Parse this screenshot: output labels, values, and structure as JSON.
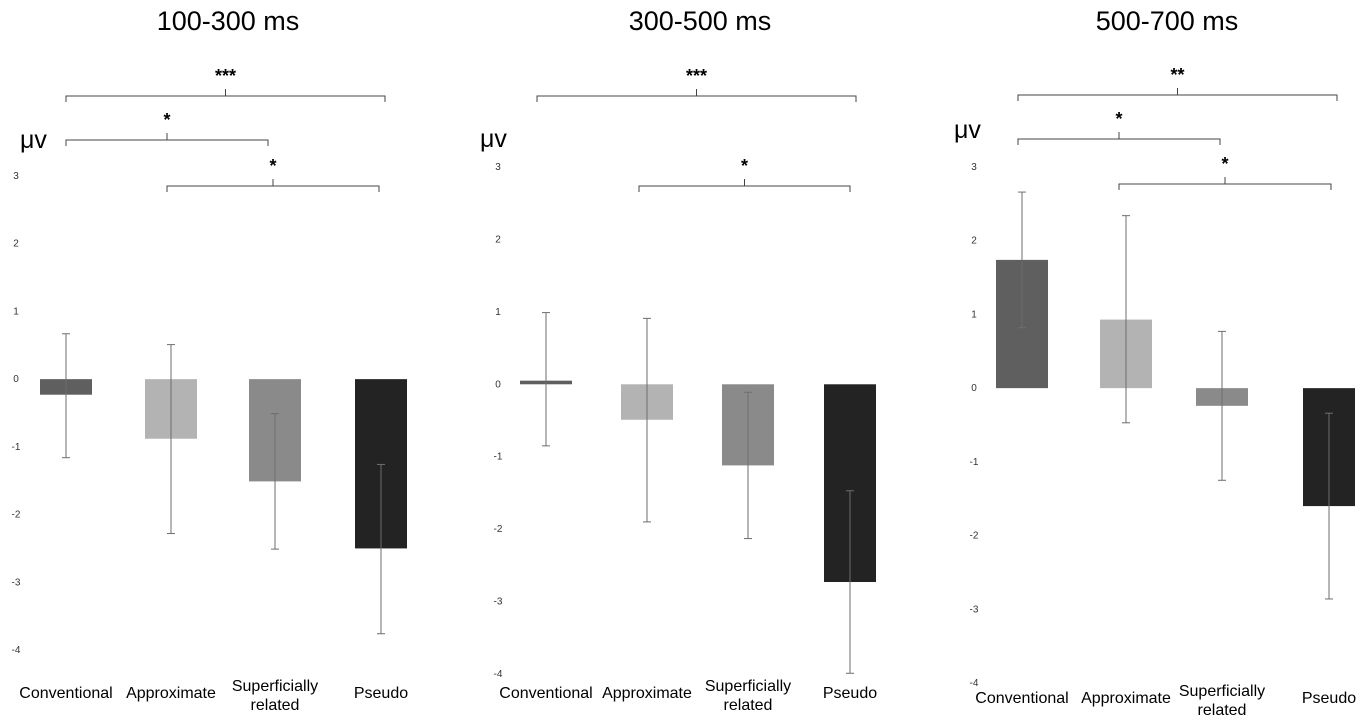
{
  "chart_data": [
    {
      "type": "bar",
      "title": "100-300 ms",
      "ylabel": "μv",
      "ylim": [
        -4,
        3
      ],
      "yticks": [
        3,
        2,
        1,
        0,
        -1,
        -2,
        -3,
        -4
      ],
      "categories": [
        "Conventional",
        "Approximate",
        "Superficially related",
        "Pseudo"
      ],
      "category_label_lines": [
        [
          "Conventional"
        ],
        [
          "Approximate"
        ],
        [
          "Superficially",
          "related"
        ],
        [
          "Pseudo"
        ]
      ],
      "values": [
        -0.23,
        -0.88,
        -1.51,
        -2.5
      ],
      "error_bars": [
        [
          -1.16,
          0.67
        ],
        [
          -2.28,
          0.51
        ],
        [
          -2.51,
          -0.51
        ],
        [
          -3.76,
          -1.26
        ]
      ],
      "colors": [
        "#5f5f5f",
        "#b3b3b3",
        "#8a8a8a",
        "#232323"
      ],
      "significance": [
        {
          "from": 0,
          "to": 3,
          "label": "***"
        },
        {
          "from": 0,
          "to": 2,
          "label": "*"
        },
        {
          "from": 1,
          "to": 3,
          "label": "*"
        }
      ]
    },
    {
      "type": "bar",
      "title": "300-500 ms",
      "ylabel": "μv",
      "ylim": [
        -4,
        3
      ],
      "yticks": [
        3,
        2,
        1,
        0,
        -1,
        -2,
        -3,
        -4
      ],
      "categories": [
        "Conventional",
        "Approximate",
        "Superficially related",
        "Pseudo"
      ],
      "category_label_lines": [
        [
          "Conventional"
        ],
        [
          "Approximate"
        ],
        [
          "Superficially",
          "related"
        ],
        [
          "Pseudo"
        ]
      ],
      "values": [
        0.05,
        -0.49,
        -1.12,
        -2.73
      ],
      "error_bars": [
        [
          -0.85,
          0.99
        ],
        [
          -1.9,
          0.91
        ],
        [
          -2.13,
          -0.11
        ],
        [
          -3.99,
          -1.47
        ]
      ],
      "colors": [
        "#5f5f5f",
        "#b3b3b3",
        "#8a8a8a",
        "#232323"
      ],
      "significance": [
        {
          "from": 0,
          "to": 3,
          "label": "***"
        },
        {
          "from": 1,
          "to": 3,
          "label": "*"
        }
      ]
    },
    {
      "type": "bar",
      "title": "500-700 ms",
      "ylabel": "μv",
      "ylim": [
        -4,
        3
      ],
      "yticks": [
        3,
        2,
        1,
        0,
        -1,
        -2,
        -3,
        -4
      ],
      "categories": [
        "Conventional",
        "Approximate",
        "Superficially related",
        "Pseudo"
      ],
      "category_label_lines": [
        [
          "Conventional"
        ],
        [
          "Approximate"
        ],
        [
          "Superficially",
          "related"
        ],
        [
          "Pseudo"
        ]
      ],
      "values": [
        1.74,
        0.93,
        -0.24,
        -1.6
      ],
      "error_bars": [
        [
          0.82,
          2.66
        ],
        [
          -0.47,
          2.34
        ],
        [
          -1.25,
          0.77
        ],
        [
          -2.86,
          -0.34
        ]
      ],
      "colors": [
        "#5f5f5f",
        "#b3b3b3",
        "#8a8a8a",
        "#232323"
      ],
      "significance": [
        {
          "from": 0,
          "to": 3,
          "label": "**"
        },
        {
          "from": 0,
          "to": 2,
          "label": "*"
        },
        {
          "from": 1,
          "to": 3,
          "label": "*"
        }
      ]
    }
  ]
}
